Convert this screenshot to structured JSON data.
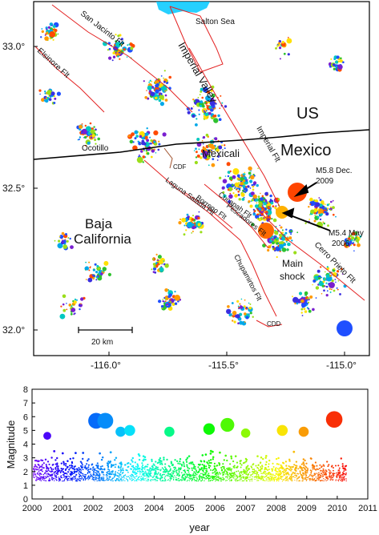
{
  "map": {
    "labels": {
      "salton_sea": "Salton Sea",
      "san_jacinto": "San Jacinto Flt",
      "elsinore": "Elsinore Flt",
      "imperial_valley": "Imperial Valley",
      "us": "US",
      "mexico": "Mexico",
      "mexicali": "Mexicali",
      "imperial_flt": "Imperial Flt",
      "ocotillo": "Ocotillo",
      "cdf": "CDF",
      "m58_line1": "M5.8 Dec.",
      "m58_line2": "2009",
      "laguna_salada": "Laguna Salada Flt",
      "borrego": "Borrego Flt",
      "cucapah": "Cucapah Flt",
      "pescadores": "Pescadores Flt",
      "baja_line1": "Baja",
      "baja_line2": "California",
      "m54_line1": "M5.4 May",
      "m54_line2": "2006",
      "main_shock_line1": "Main",
      "main_shock_line2": "shock",
      "cerro_prieto": "Cerro Prieto Flt",
      "chupamirtos": "Chupamirtos Flt",
      "cdd": "CDD",
      "scale_bar": "20 km"
    },
    "lat_ticks": [
      "33.0°",
      "32.5°",
      "32.0°"
    ],
    "lon_ticks": [
      "-116.0°",
      "-115.5°",
      "-115.0°"
    ],
    "colors": {
      "faults": "#e32222",
      "border": "#000000",
      "water": "#00c8ff",
      "cdf_fault": "#a0522d"
    }
  },
  "timeline": {
    "ylabel": "Magnitude",
    "xlabel": "year",
    "y_ticks": [
      "0",
      "1",
      "2",
      "3",
      "4",
      "5",
      "6",
      "7",
      "8"
    ],
    "x_ticks": [
      "2000",
      "2001",
      "2002",
      "2003",
      "2004",
      "2005",
      "2006",
      "2007",
      "2008",
      "2009",
      "2010",
      "2011"
    ]
  },
  "chart_data": {
    "type": "scatter",
    "xlabel": "year",
    "ylabel": "Magnitude",
    "xlim": [
      2000,
      2011
    ],
    "ylim": [
      0,
      8
    ],
    "large_events": [
      {
        "year": 2000.5,
        "magnitude": 4.6
      },
      {
        "year": 2002.1,
        "magnitude": 5.7
      },
      {
        "year": 2002.4,
        "magnitude": 5.7
      },
      {
        "year": 2002.9,
        "magnitude": 4.9
      },
      {
        "year": 2003.2,
        "magnitude": 5.0
      },
      {
        "year": 2004.5,
        "magnitude": 4.9
      },
      {
        "year": 2005.8,
        "magnitude": 5.1
      },
      {
        "year": 2006.4,
        "magnitude": 5.4
      },
      {
        "year": 2007.0,
        "magnitude": 4.8
      },
      {
        "year": 2008.2,
        "magnitude": 5.0
      },
      {
        "year": 2008.9,
        "magnitude": 4.9
      },
      {
        "year": 2009.9,
        "magnitude": 5.8
      }
    ]
  }
}
